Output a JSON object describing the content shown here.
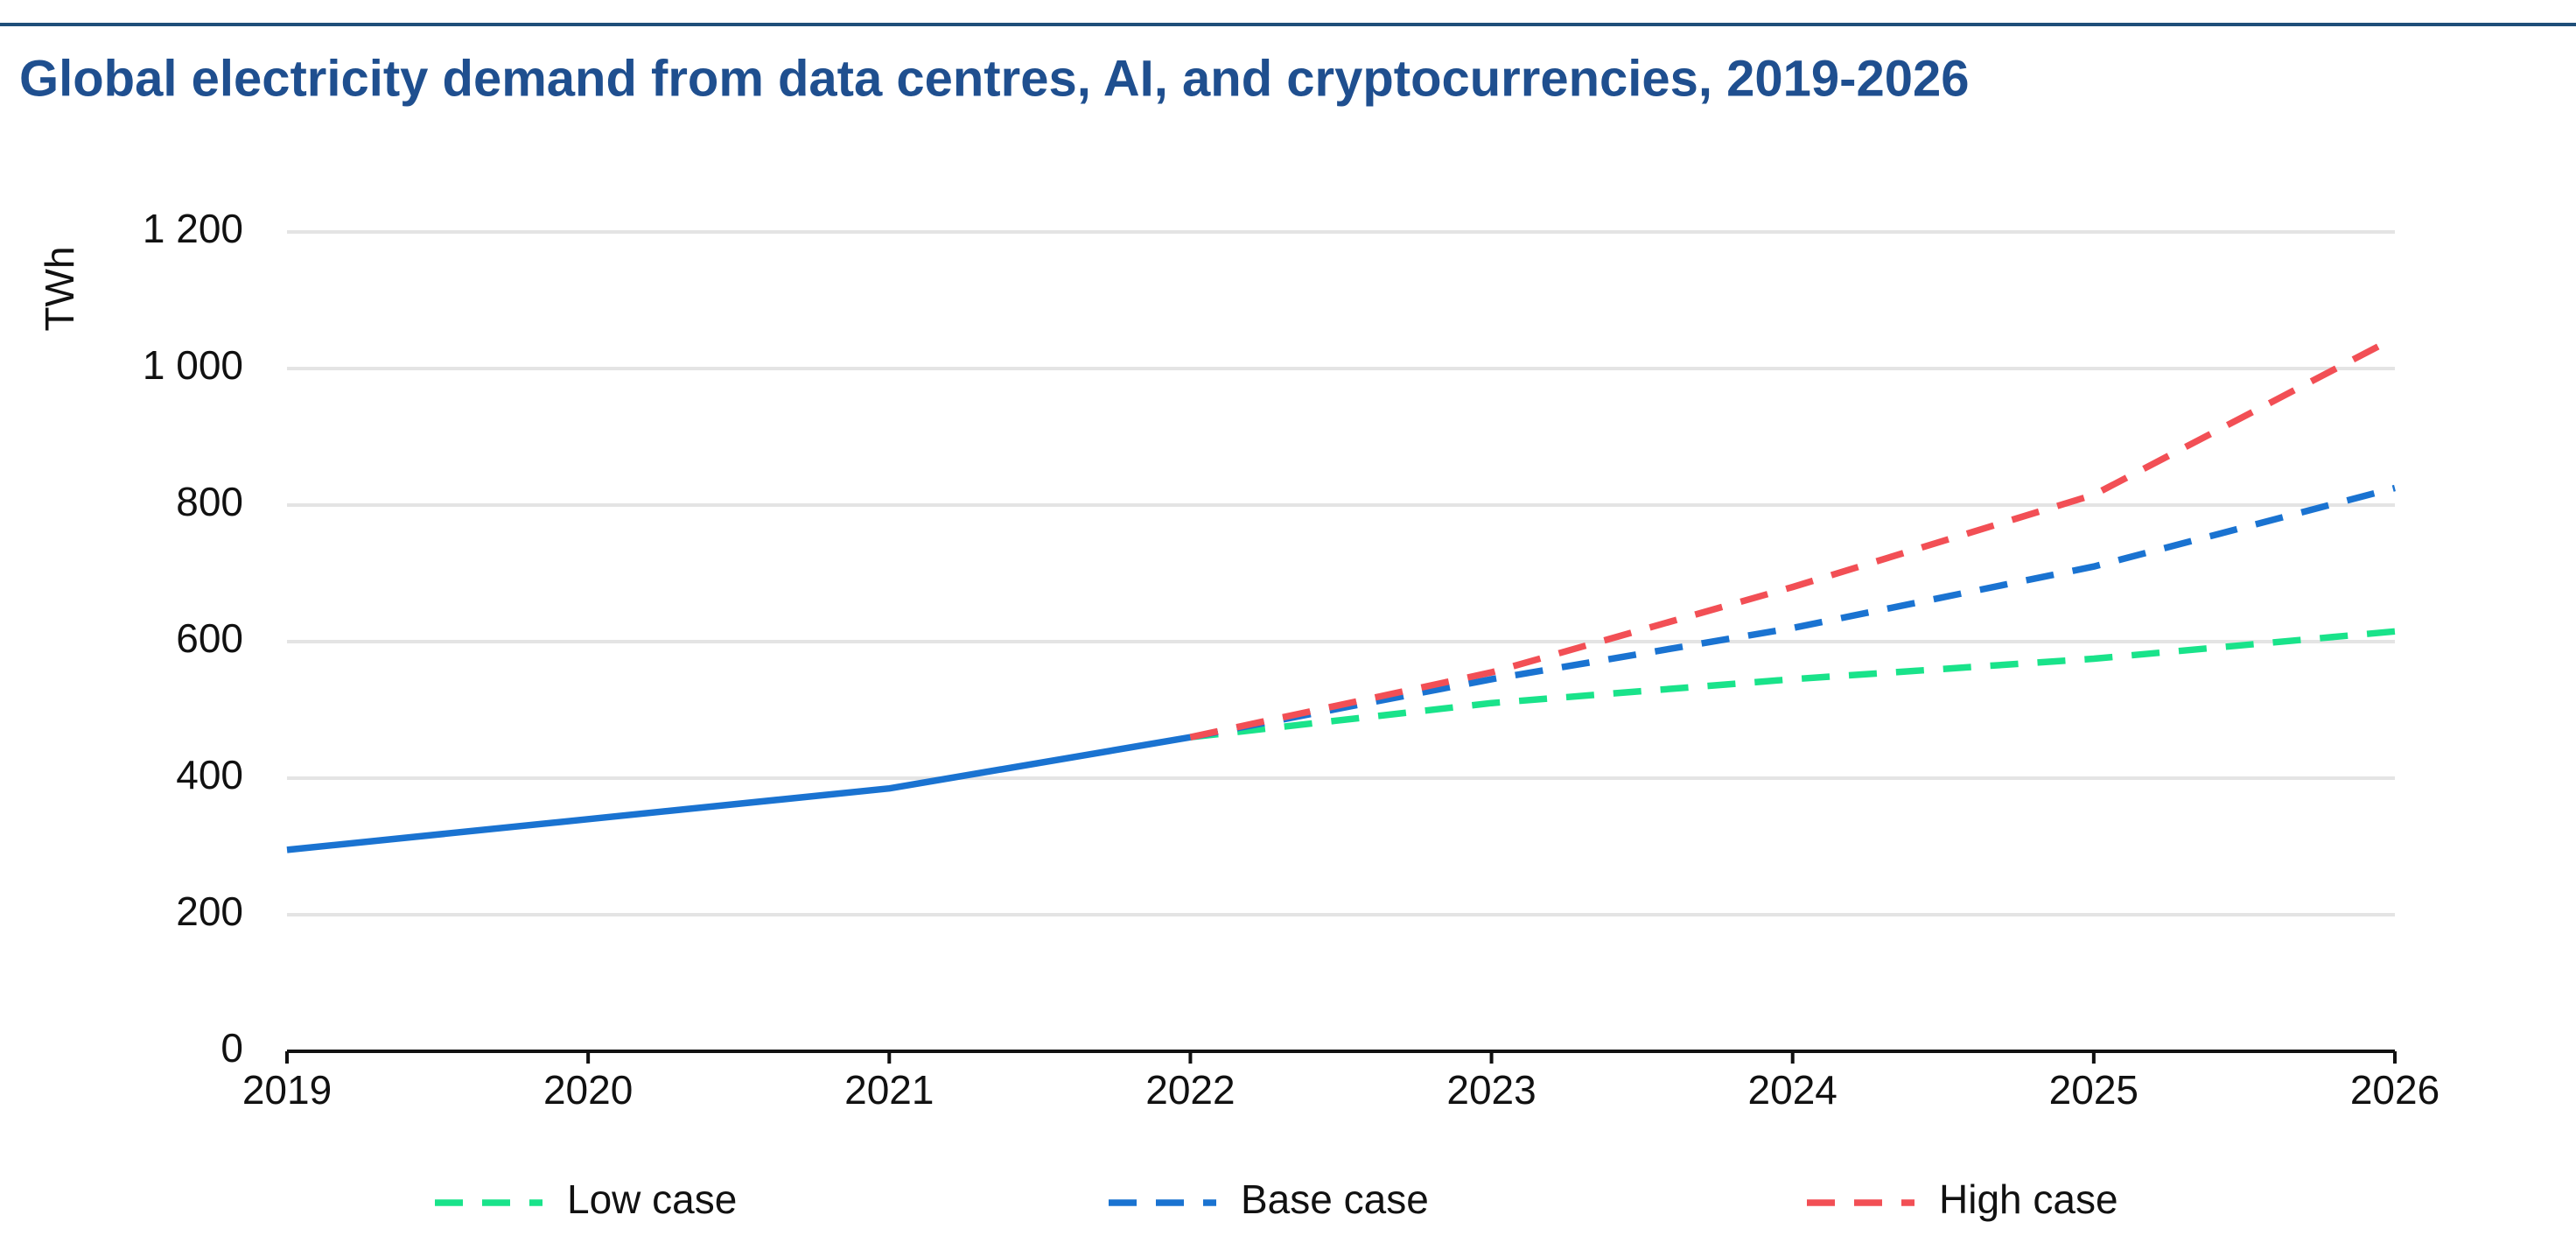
{
  "chart_data": {
    "type": "line",
    "title": "Global electricity demand from data centres, AI, and cryptocurrencies, 2019-2026",
    "y_label": "TWh",
    "x": [
      2019,
      2020,
      2021,
      2022,
      2023,
      2024,
      2025,
      2026
    ],
    "xlim": [
      2019,
      2026
    ],
    "xticks": [
      2019,
      2020,
      2021,
      2022,
      2023,
      2024,
      2025,
      2026
    ],
    "ylim": [
      0,
      1200
    ],
    "yticks": [
      0,
      200,
      400,
      600,
      800,
      {
        "value": 1000,
        "label": "1 000"
      },
      {
        "value": 1200,
        "label": "1 200"
      }
    ],
    "grid": true,
    "legend": "bottom",
    "series": [
      {
        "color": "#1a73d1",
        "dashed": false,
        "values": [
          295,
          340,
          385,
          460,
          null,
          null,
          null,
          null
        ]
      },
      {
        "name": "Low case",
        "color": "#19e38a",
        "dashed": true,
        "values": [
          null,
          null,
          null,
          460,
          510,
          545,
          575,
          615
        ]
      },
      {
        "name": "Base case",
        "color": "#1a73d1",
        "dashed": true,
        "values": [
          null,
          null,
          null,
          460,
          545,
          620,
          710,
          825
        ]
      },
      {
        "name": "High case",
        "color": "#f24f55",
        "dashed": true,
        "values": [
          null,
          null,
          null,
          460,
          555,
          680,
          815,
          1045
        ]
      }
    ]
  }
}
